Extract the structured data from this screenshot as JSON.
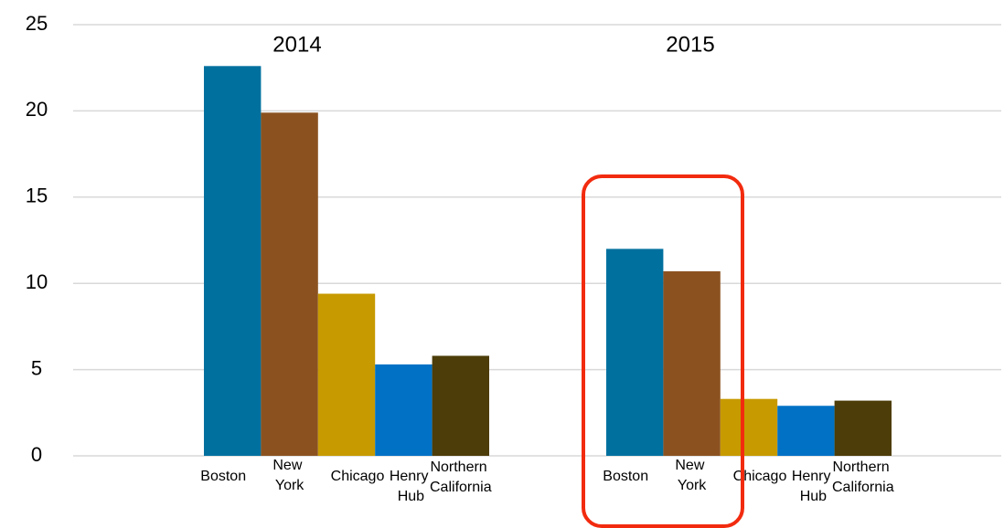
{
  "chart_data": {
    "type": "bar",
    "categories": [
      "2014",
      "2015"
    ],
    "series": [
      {
        "name": "Boston",
        "color": "#00709f",
        "values": [
          22.6,
          12.0
        ]
      },
      {
        "name": "New York",
        "color": "#8b5220",
        "values": [
          19.9,
          10.7
        ]
      },
      {
        "name": "Chicago",
        "color": "#c79a00",
        "values": [
          9.4,
          3.3
        ]
      },
      {
        "name": "Henry Hub",
        "color": "#0071c5",
        "values": [
          5.3,
          2.9
        ]
      },
      {
        "name": "Northern California",
        "color": "#4d3d08",
        "values": [
          5.8,
          3.2
        ]
      }
    ],
    "ylim": [
      0,
      25
    ],
    "yticks": [
      0,
      5,
      10,
      15,
      20,
      25
    ],
    "grid": true
  }
}
